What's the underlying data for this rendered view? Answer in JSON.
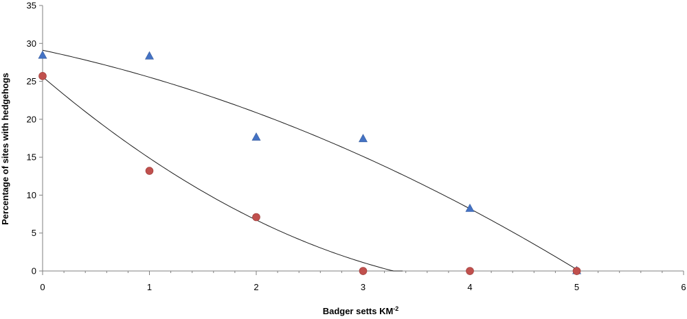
{
  "chart_data": {
    "type": "scatter",
    "title": "",
    "xlabel": "Badger setts KM",
    "xlabel_sup": "-2",
    "ylabel": "Percentage of sites with hedgehogs",
    "xlim": [
      0,
      6
    ],
    "ylim": [
      0,
      35
    ],
    "xticks": [
      0,
      1,
      2,
      3,
      4,
      5,
      6
    ],
    "yticks": [
      0,
      5,
      10,
      15,
      20,
      25,
      30,
      35
    ],
    "xtick_labels": [
      "0",
      "1",
      "2",
      "3",
      "4",
      "5",
      "6"
    ],
    "ytick_labels": [
      "0",
      "5",
      "10",
      "15",
      "20",
      "25",
      "30",
      "35"
    ],
    "minor_x_step": 0.2,
    "grid": false,
    "legend": "none",
    "series": [
      {
        "marker": "triangle",
        "color": "#4472C4",
        "x": [
          0,
          1,
          2,
          3,
          4,
          5
        ],
        "y": [
          28.4,
          28.3,
          17.6,
          17.4,
          8.2,
          0
        ]
      },
      {
        "marker": "circle",
        "color": "#C0504D",
        "x": [
          0,
          1,
          2,
          3,
          4,
          5
        ],
        "y": [
          25.7,
          13.2,
          7.1,
          0,
          0,
          0
        ]
      }
    ],
    "trendlines": [
      {
        "color": "#1a1a1a",
        "x_start": 0,
        "x_end": 5,
        "coefficients": [
          29.1,
          -3.0,
          -0.556
        ]
      },
      {
        "color": "#1a1a1a",
        "x_start": 0,
        "x_end": 3.37,
        "coefficients": [
          25.6,
          -12.0,
          1.28
        ]
      }
    ]
  }
}
